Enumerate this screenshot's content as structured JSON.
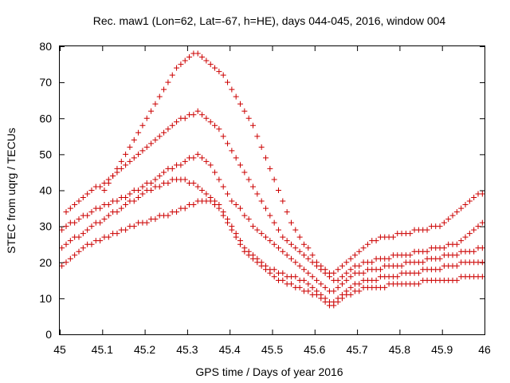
{
  "chart_data": {
    "type": "scatter",
    "title": "Rec. maw1 (Lon=62, Lat=-67, h=HE), days 044-045, 2016, window 004",
    "xlabel": "GPS time / Days of year 2016",
    "ylabel": "STEC from uqrg / TECUs",
    "xlim": [
      45,
      46
    ],
    "ylim": [
      0,
      80
    ],
    "xticks": [
      "45",
      "45.1",
      "45.2",
      "45.3",
      "45.4",
      "45.5",
      "45.6",
      "45.7",
      "45.8",
      "45.9",
      "46"
    ],
    "yticks": [
      "0",
      "10",
      "20",
      "30",
      "40",
      "50",
      "60",
      "70",
      "80"
    ],
    "grid": false,
    "marker": "plus",
    "color": "#cc0000",
    "series": [
      {
        "x": [
          45.005,
          45.015,
          45.025,
          45.035,
          45.045,
          45.055,
          45.065,
          45.075,
          45.085,
          45.095,
          45.105,
          45.115,
          45.125,
          45.135,
          45.145,
          45.155,
          45.165,
          45.175,
          45.185,
          45.195,
          45.205,
          45.215,
          45.225,
          45.235,
          45.245,
          45.255,
          45.265,
          45.275,
          45.285,
          45.295,
          45.305,
          45.315,
          45.325,
          45.335,
          45.345,
          45.355,
          45.365,
          45.375,
          45.385,
          45.395,
          45.405,
          45.415,
          45.425,
          45.435,
          45.445,
          45.455,
          45.465,
          45.475,
          45.485,
          45.495,
          45.505,
          45.515,
          45.525,
          45.535,
          45.545,
          45.555,
          45.565,
          45.575,
          45.585,
          45.595,
          45.605,
          45.615,
          45.625,
          45.635,
          45.645,
          45.655,
          45.665,
          45.675,
          45.685,
          45.695,
          45.705,
          45.715,
          45.725,
          45.735,
          45.745,
          45.755,
          45.765,
          45.775,
          45.785,
          45.795,
          45.805,
          45.815,
          45.825,
          45.835,
          45.845,
          45.855,
          45.865,
          45.875,
          45.885,
          45.895,
          45.905,
          45.915,
          45.925,
          45.935,
          45.945,
          45.955,
          45.965,
          45.975,
          45.985,
          45.995
        ],
        "y": [
          19,
          20,
          21,
          22,
          23,
          24,
          25,
          25,
          26,
          26,
          27,
          27,
          28,
          28,
          29,
          29,
          30,
          30,
          31,
          31,
          31,
          32,
          32,
          33,
          33,
          33,
          34,
          34,
          35,
          35,
          36,
          36,
          37,
          37,
          37,
          37,
          36,
          35,
          33,
          31,
          29,
          27,
          25,
          23,
          22,
          21,
          20,
          19,
          18,
          17,
          16,
          15,
          15,
          14,
          14,
          13,
          13,
          12,
          12,
          11,
          11,
          10,
          9,
          8,
          8,
          9,
          10,
          11,
          11,
          12,
          12,
          13,
          13,
          13,
          13,
          13,
          13,
          14,
          14,
          14,
          14,
          14,
          14,
          14,
          14,
          15,
          15,
          15,
          15,
          15,
          15,
          15,
          15,
          15,
          16,
          16,
          16,
          16,
          16,
          16
        ]
      },
      {
        "x": [
          45.005,
          45.015,
          45.025,
          45.035,
          45.045,
          45.055,
          45.065,
          45.075,
          45.085,
          45.095,
          45.105,
          45.115,
          45.125,
          45.135,
          45.145,
          45.155,
          45.165,
          45.175,
          45.185,
          45.195,
          45.205,
          45.215,
          45.225,
          45.235,
          45.245,
          45.255,
          45.265,
          45.275,
          45.285,
          45.295,
          45.305,
          45.315,
          45.325,
          45.335,
          45.345,
          45.355,
          45.365,
          45.375,
          45.385,
          45.395,
          45.405,
          45.415,
          45.425,
          45.435,
          45.445,
          45.455,
          45.465,
          45.475,
          45.485,
          45.495,
          45.505,
          45.515,
          45.525,
          45.535,
          45.545,
          45.555,
          45.565,
          45.575,
          45.585,
          45.595,
          45.605,
          45.615,
          45.625,
          45.635,
          45.645,
          45.655,
          45.665,
          45.675,
          45.685,
          45.695,
          45.705,
          45.715,
          45.725,
          45.735,
          45.745,
          45.755,
          45.765,
          45.775,
          45.785,
          45.795,
          45.805,
          45.815,
          45.825,
          45.835,
          45.845,
          45.855,
          45.865,
          45.875,
          45.885,
          45.895,
          45.905,
          45.915,
          45.925,
          45.935,
          45.945,
          45.955,
          45.965,
          45.975,
          45.985,
          45.995
        ],
        "y": [
          24,
          25,
          26,
          27,
          27,
          28,
          29,
          30,
          31,
          31,
          32,
          33,
          34,
          34,
          35,
          36,
          37,
          37,
          38,
          39,
          40,
          40,
          41,
          41,
          42,
          42,
          43,
          43,
          43,
          43,
          42,
          42,
          41,
          40,
          39,
          38,
          37,
          36,
          34,
          32,
          30,
          28,
          26,
          24,
          23,
          22,
          21,
          20,
          19,
          18,
          18,
          17,
          17,
          16,
          16,
          16,
          15,
          15,
          14,
          13,
          12,
          11,
          10,
          9,
          9,
          10,
          11,
          12,
          13,
          14,
          14,
          15,
          15,
          15,
          15,
          16,
          16,
          16,
          16,
          16,
          17,
          17,
          17,
          17,
          17,
          18,
          18,
          18,
          18,
          18,
          19,
          19,
          19,
          19,
          20,
          20,
          20,
          20,
          20,
          20
        ]
      },
      {
        "x": [
          45.005,
          45.015,
          45.025,
          45.035,
          45.045,
          45.055,
          45.065,
          45.075,
          45.085,
          45.095,
          45.105,
          45.115,
          45.125,
          45.135,
          45.145,
          45.155,
          45.165,
          45.175,
          45.185,
          45.195,
          45.205,
          45.215,
          45.225,
          45.235,
          45.245,
          45.255,
          45.265,
          45.275,
          45.285,
          45.295,
          45.305,
          45.315,
          45.325,
          45.335,
          45.345,
          45.355,
          45.365,
          45.375,
          45.385,
          45.395,
          45.405,
          45.415,
          45.425,
          45.435,
          45.445,
          45.455,
          45.465,
          45.475,
          45.485,
          45.495,
          45.505,
          45.515,
          45.525,
          45.535,
          45.545,
          45.555,
          45.565,
          45.575,
          45.585,
          45.595,
          45.605,
          45.615,
          45.625,
          45.635,
          45.645,
          45.655,
          45.665,
          45.675,
          45.685,
          45.695,
          45.705,
          45.715,
          45.725,
          45.735,
          45.745,
          45.755,
          45.765,
          45.775,
          45.785,
          45.795,
          45.805,
          45.815,
          45.825,
          45.835,
          45.845,
          45.855,
          45.865,
          45.875,
          45.885,
          45.895,
          45.905,
          45.915,
          45.925,
          45.935,
          45.945,
          45.955,
          45.965,
          45.975,
          45.985,
          45.995
        ],
        "y": [
          29,
          30,
          31,
          31,
          32,
          33,
          33,
          34,
          35,
          35,
          36,
          36,
          37,
          37,
          38,
          38,
          39,
          40,
          40,
          41,
          42,
          42,
          43,
          44,
          45,
          46,
          46,
          47,
          47,
          48,
          49,
          49,
          50,
          49,
          48,
          47,
          45,
          43,
          41,
          39,
          37,
          36,
          35,
          33,
          32,
          30,
          29,
          28,
          27,
          26,
          25,
          24,
          23,
          22,
          21,
          20,
          19,
          18,
          17,
          16,
          15,
          14,
          13,
          12,
          12,
          13,
          14,
          15,
          16,
          17,
          17,
          17,
          18,
          18,
          18,
          18,
          19,
          19,
          19,
          19,
          19,
          20,
          20,
          20,
          20,
          20,
          21,
          21,
          21,
          21,
          22,
          22,
          22,
          22,
          23,
          23,
          23,
          23,
          24,
          24
        ]
      },
      {
        "x": [
          45.015,
          45.025,
          45.035,
          45.045,
          45.055,
          45.065,
          45.075,
          45.085,
          45.095,
          45.105,
          45.115,
          45.125,
          45.135,
          45.145,
          45.155,
          45.165,
          45.175,
          45.185,
          45.195,
          45.205,
          45.215,
          45.225,
          45.235,
          45.245,
          45.255,
          45.265,
          45.275,
          45.285,
          45.295,
          45.305,
          45.315,
          45.325,
          45.335,
          45.345,
          45.355,
          45.365,
          45.375,
          45.385,
          45.395,
          45.405,
          45.415,
          45.425,
          45.435,
          45.445,
          45.455,
          45.465,
          45.475,
          45.485,
          45.495,
          45.505,
          45.515,
          45.525,
          45.535,
          45.545,
          45.555,
          45.565,
          45.575,
          45.585,
          45.595,
          45.605,
          45.615,
          45.625,
          45.635,
          45.645,
          45.655,
          45.665,
          45.675,
          45.685,
          45.695,
          45.705,
          45.715,
          45.725,
          45.735,
          45.745,
          45.755,
          45.765,
          45.775,
          45.785,
          45.795,
          45.805,
          45.815,
          45.825,
          45.835,
          45.845,
          45.855,
          45.865,
          45.875,
          45.885,
          45.895,
          45.905,
          45.915,
          45.925,
          45.935,
          45.945,
          45.955,
          45.965,
          45.975,
          45.985,
          45.995
        ],
        "y": [
          34,
          35,
          36,
          37,
          38,
          39,
          40,
          41,
          41,
          42,
          43,
          44,
          45,
          46,
          47,
          48,
          49,
          50,
          51,
          52,
          53,
          54,
          55,
          56,
          57,
          58,
          59,
          60,
          60,
          61,
          61,
          62,
          61,
          60,
          59,
          58,
          57,
          55,
          53,
          51,
          49,
          47,
          45,
          43,
          41,
          39,
          37,
          35,
          33,
          31,
          29,
          27,
          26,
          25,
          24,
          23,
          22,
          21,
          20,
          19,
          18,
          17,
          16,
          15,
          15,
          16,
          17,
          18,
          19,
          19,
          20,
          20,
          20,
          21,
          21,
          21,
          21,
          22,
          22,
          22,
          22,
          22,
          23,
          23,
          23,
          23,
          24,
          24,
          24,
          24,
          25,
          25,
          25,
          26,
          27,
          28,
          29,
          30,
          31
        ]
      },
      {
        "x": [
          45.105,
          45.115,
          45.125,
          45.135,
          45.145,
          45.155,
          45.165,
          45.175,
          45.185,
          45.195,
          45.205,
          45.215,
          45.225,
          45.235,
          45.245,
          45.255,
          45.265,
          45.275,
          45.285,
          45.295,
          45.305,
          45.315,
          45.325,
          45.335,
          45.345,
          45.355,
          45.365,
          45.375,
          45.385,
          45.395,
          45.405,
          45.415,
          45.425,
          45.435,
          45.445,
          45.455,
          45.465,
          45.475,
          45.485,
          45.495,
          45.505,
          45.515,
          45.525,
          45.535,
          45.545,
          45.555,
          45.565,
          45.575,
          45.585,
          45.595,
          45.605,
          45.615,
          45.625,
          45.635,
          45.645,
          45.655,
          45.665,
          45.675,
          45.685,
          45.695,
          45.705,
          45.715,
          45.725,
          45.735,
          45.745,
          45.755,
          45.765,
          45.775,
          45.785,
          45.795,
          45.805,
          45.815,
          45.825,
          45.835,
          45.845,
          45.855,
          45.865,
          45.875,
          45.885,
          45.895,
          45.905,
          45.915,
          45.925,
          45.935,
          45.945,
          45.955,
          45.965,
          45.975,
          45.985,
          45.995
        ],
        "y": [
          40,
          42,
          44,
          46,
          48,
          50,
          52,
          54,
          56,
          58,
          60,
          62,
          64,
          66,
          68,
          70,
          72,
          74,
          75,
          76,
          77,
          78,
          78,
          77,
          76,
          75,
          74,
          73,
          72,
          70,
          68,
          66,
          64,
          62,
          60,
          58,
          55,
          52,
          49,
          46,
          43,
          40,
          37,
          34,
          31,
          29,
          27,
          25,
          24,
          22,
          20,
          19,
          18,
          17,
          17,
          18,
          19,
          20,
          21,
          22,
          23,
          24,
          25,
          26,
          26,
          27,
          27,
          27,
          27,
          28,
          28,
          28,
          28,
          29,
          29,
          29,
          29,
          30,
          30,
          30,
          31,
          32,
          33,
          34,
          35,
          36,
          37,
          38,
          39,
          39
        ]
      }
    ]
  }
}
